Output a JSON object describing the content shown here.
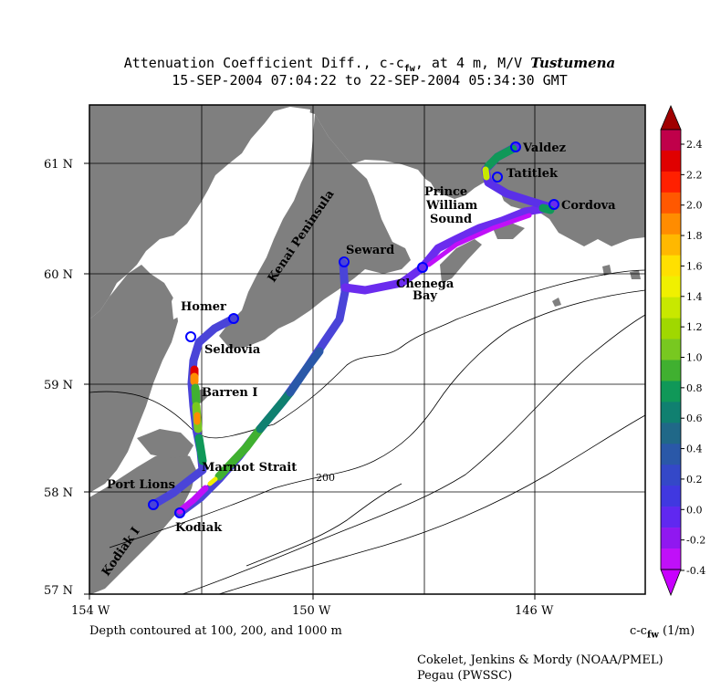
{
  "title": {
    "line1_prefix": "Attenuation Coefficient Diff., c-c",
    "line1_sub": "fw",
    "line1_mid": ", at 4 m, M/V ",
    "line1_vessel": "Tustumena",
    "line2": "15-SEP-2004 07:04:22 to 22-SEP-2004 05:34:30 GMT"
  },
  "axes": {
    "lat_labels": [
      "61 N",
      "60 N",
      "59 N",
      "58 N",
      "57 N"
    ],
    "lon_labels": [
      "154 W",
      "150 W",
      "146 W"
    ]
  },
  "places": {
    "valdez": "Valdez",
    "tatitlek": "Tatitlek",
    "cordova": "Cordova",
    "pws1": "Prince",
    "pws2": "William",
    "pws3": "Sound",
    "seward": "Seward",
    "chenega1": "Chenega",
    "chenega2": "Bay",
    "kenai": "Kenai Peninsula",
    "homer": "Homer",
    "seldovia": "Seldovia",
    "barren": "Barren I",
    "marmot": "Marmot Strait",
    "portlions": "Port Lions",
    "kodiak": "Kodiak",
    "kodiaki": "Kodiak I",
    "contour": "200"
  },
  "colorbar": {
    "ticks": [
      "2.4",
      "2.2",
      "2.0",
      "1.8",
      "1.6",
      "1.4",
      "1.2",
      "1.0",
      "0.8",
      "0.6",
      "0.4",
      "0.2",
      "0.0",
      "-0.2",
      "-0.4"
    ],
    "colors": [
      "#c0004a",
      "#e00000",
      "#ff2000",
      "#ff5800",
      "#ff8c00",
      "#ffb800",
      "#ffe000",
      "#f0f000",
      "#c8e800",
      "#a0d800",
      "#78c820",
      "#40b030",
      "#109858",
      "#108070",
      "#206888",
      "#2a58a8",
      "#3448c8",
      "#4038e0",
      "#6028f0",
      "#9018f0",
      "#c010f8"
    ],
    "top_arrow": "#a00000",
    "bottom_arrow": "#c800ff"
  },
  "footer": {
    "depth_note": "Depth contoured at 100, 200, and 1000 m",
    "unit_prefix": "c-c",
    "unit_sub": "fw",
    "unit_suffix": " (1/m)",
    "credit1": "Cokelet, Jenkins & Mordy (NOAA/PMEL)",
    "credit2": "Pegau (PWSSC)"
  }
}
